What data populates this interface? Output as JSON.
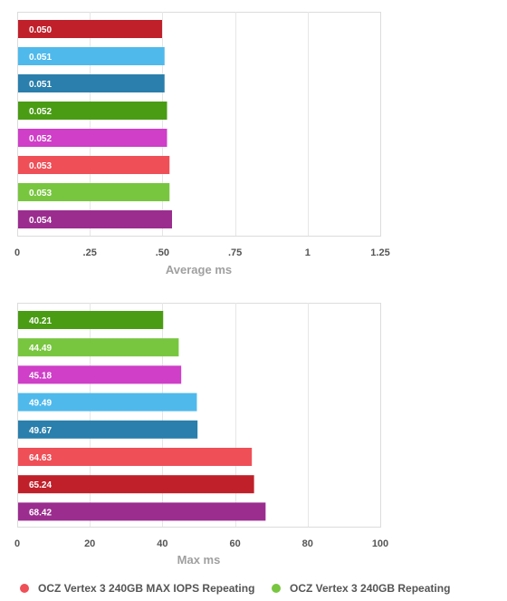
{
  "chart_data": [
    {
      "type": "bar",
      "orientation": "horizontal",
      "xlabel": "Average ms",
      "xlim": [
        0,
        1.25
      ],
      "ticks": [
        0,
        0.25,
        0.5,
        0.75,
        1,
        1.25
      ],
      "tick_labels": [
        "0",
        ".25",
        ".50",
        ".75",
        "1",
        "1.25"
      ],
      "grid": true,
      "bars": [
        {
          "label": "0.050",
          "value": 0.05,
          "color": "#c0202a"
        },
        {
          "label": "0.051",
          "value": 0.051,
          "color": "#4fb9ec"
        },
        {
          "label": "0.051",
          "value": 0.051,
          "color": "#2a7fac"
        },
        {
          "label": "0.052",
          "value": 0.052,
          "color": "#4a9c14"
        },
        {
          "label": "0.052",
          "value": 0.052,
          "color": "#cf3fc8"
        },
        {
          "label": "0.053",
          "value": 0.053,
          "color": "#ef4f57"
        },
        {
          "label": "0.053",
          "value": 0.053,
          "color": "#78c63f"
        },
        {
          "label": "0.054",
          "value": 0.054,
          "color": "#9b2d8f"
        }
      ]
    },
    {
      "type": "bar",
      "orientation": "horizontal",
      "xlabel": "Max ms",
      "xlim": [
        0,
        100
      ],
      "ticks": [
        0,
        20,
        40,
        60,
        80,
        100
      ],
      "tick_labels": [
        "0",
        "20",
        "40",
        "60",
        "80",
        "100"
      ],
      "grid": true,
      "bars": [
        {
          "label": "40.21",
          "value": 40.21,
          "color": "#4a9c14"
        },
        {
          "label": "44.49",
          "value": 44.49,
          "color": "#78c63f"
        },
        {
          "label": "45.18",
          "value": 45.18,
          "color": "#cf3fc8"
        },
        {
          "label": "49.49",
          "value": 49.49,
          "color": "#4fb9ec"
        },
        {
          "label": "49.67",
          "value": 49.67,
          "color": "#2a7fac"
        },
        {
          "label": "64.63",
          "value": 64.63,
          "color": "#ef4f57"
        },
        {
          "label": "65.24",
          "value": 65.24,
          "color": "#c0202a"
        },
        {
          "label": "68.42",
          "value": 68.42,
          "color": "#9b2d8f"
        }
      ]
    }
  ],
  "legend": [
    {
      "label": "OCZ Vertex 3 240GB MAX IOPS Repeating",
      "color": "#ef4f57"
    },
    {
      "label": "OCZ Vertex 3 240GB Repeating",
      "color": "#78c63f"
    }
  ]
}
